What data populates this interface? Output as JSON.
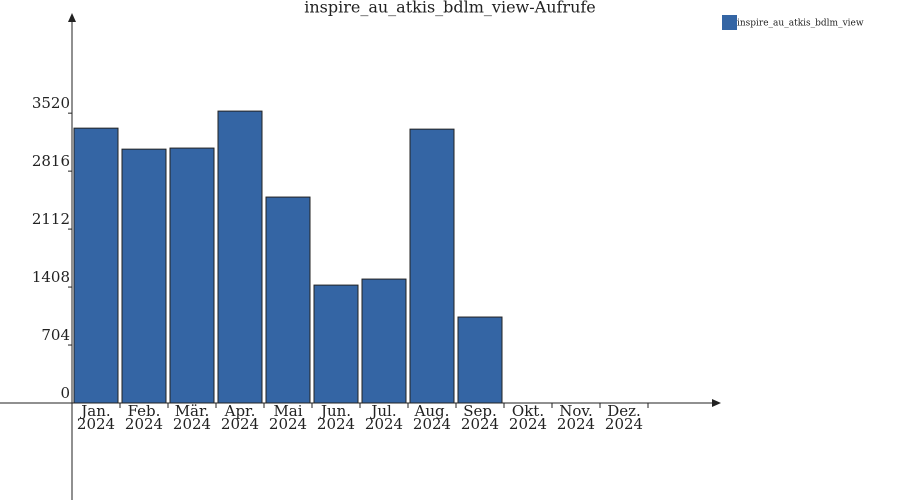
{
  "chart_data": {
    "type": "bar",
    "title": "inspire_au_atkis_bdlm_view-Aufrufe",
    "categories": [
      "Jan. 2024",
      "Feb. 2024",
      "Mär. 2024",
      "Apr. 2024",
      "Mai 2024",
      "Jun. 2024",
      "Jul. 2024",
      "Aug. 2024",
      "Sep. 2024",
      "Okt. 2024",
      "Nov. 2024",
      "Dez. 2024"
    ],
    "series": [
      {
        "name": "inspire_au_atkis_bdlm_view",
        "color": "#3465a4",
        "values": [
          3338,
          3083,
          3096,
          3545,
          2501,
          1432,
          1505,
          3326,
          1044,
          0,
          0,
          0
        ]
      }
    ],
    "ylim": [
      0,
      4700
    ],
    "yticks": [
      0,
      704,
      1408,
      2112,
      2816,
      3520
    ],
    "legend": "top-right"
  }
}
